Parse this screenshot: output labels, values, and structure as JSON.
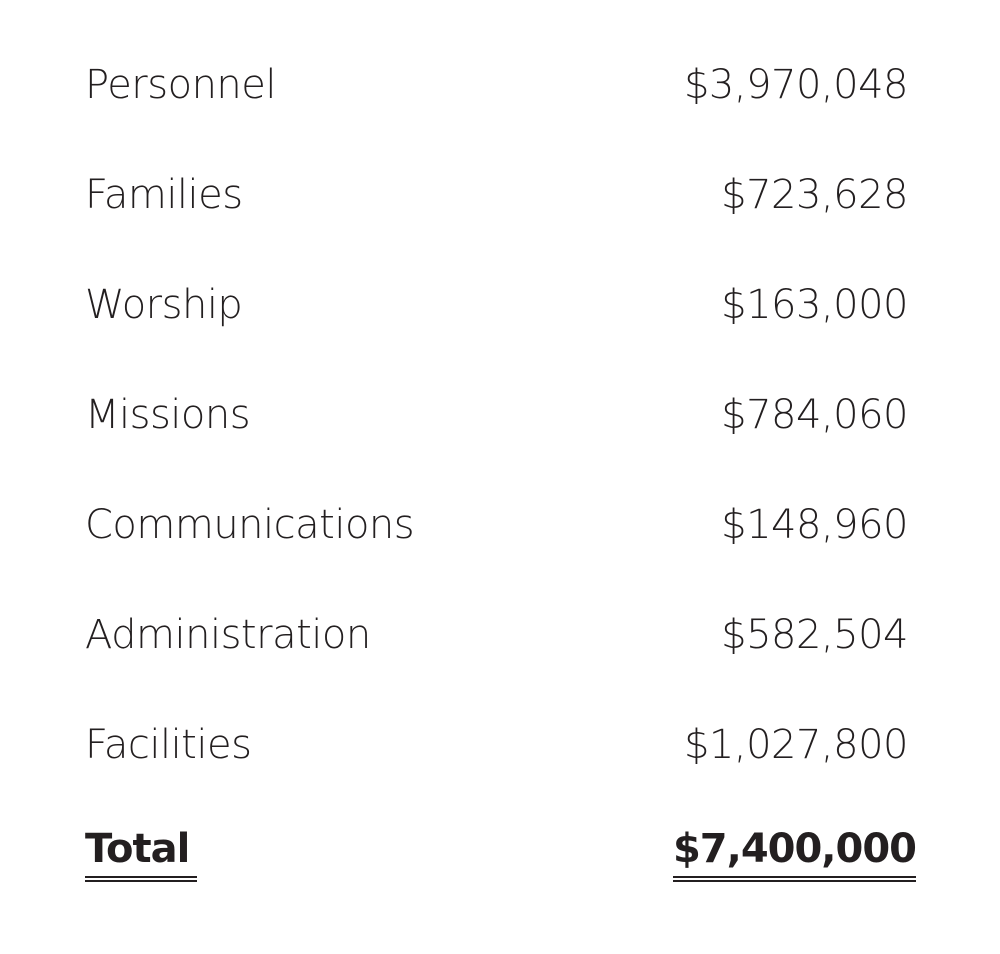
{
  "table": {
    "rows": [
      [
        "Personnel",
        "$3,970,048"
      ],
      [
        "Families",
        "$723,628"
      ],
      [
        "Worship",
        "$163,000"
      ],
      [
        "Missions",
        "$784,060"
      ],
      [
        "Communications",
        "$148,960"
      ],
      [
        "Administration",
        "$582,504"
      ],
      [
        "Facilities",
        "$1,027,800"
      ]
    ],
    "total": [
      "Total",
      "$7,400,000"
    ]
  }
}
